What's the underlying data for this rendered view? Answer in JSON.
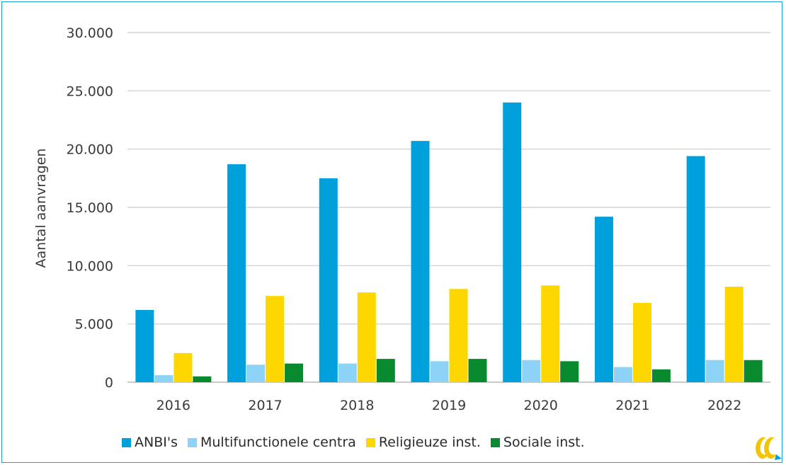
{
  "chart_data": {
    "type": "bar",
    "title": "",
    "xlabel": "",
    "ylabel": "Aantal aanvragen",
    "ylim": [
      0,
      30000
    ],
    "yticks": [
      "0",
      "5.000",
      "10.000",
      "15.000",
      "20.000",
      "25.000",
      "30.000"
    ],
    "ytick_values": [
      0,
      5000,
      10000,
      15000,
      20000,
      25000,
      30000
    ],
    "categories": [
      "2016",
      "2017",
      "2018",
      "2019",
      "2020",
      "2021",
      "2022"
    ],
    "grid": true,
    "legend_position": "bottom",
    "series": [
      {
        "name": "ANBI's",
        "color": "#00a0dc",
        "values": [
          6200,
          18700,
          17500,
          20700,
          24000,
          14200,
          19400
        ]
      },
      {
        "name": "Multifunctionele centra",
        "color": "#8dd3f7",
        "values": [
          600,
          1500,
          1600,
          1800,
          1900,
          1300,
          1900
        ]
      },
      {
        "name": "Religieuze inst.",
        "color": "#ffd700",
        "values": [
          2500,
          7400,
          7700,
          8000,
          8300,
          6800,
          8200
        ]
      },
      {
        "name": "Sociale inst.",
        "color": "#0a8a2e",
        "values": [
          500,
          1600,
          2000,
          2000,
          1800,
          1100,
          1900
        ]
      }
    ]
  },
  "logo": {
    "icon": "brand-logo-icon",
    "colors": [
      "#f5c400",
      "#00a0dc"
    ]
  }
}
